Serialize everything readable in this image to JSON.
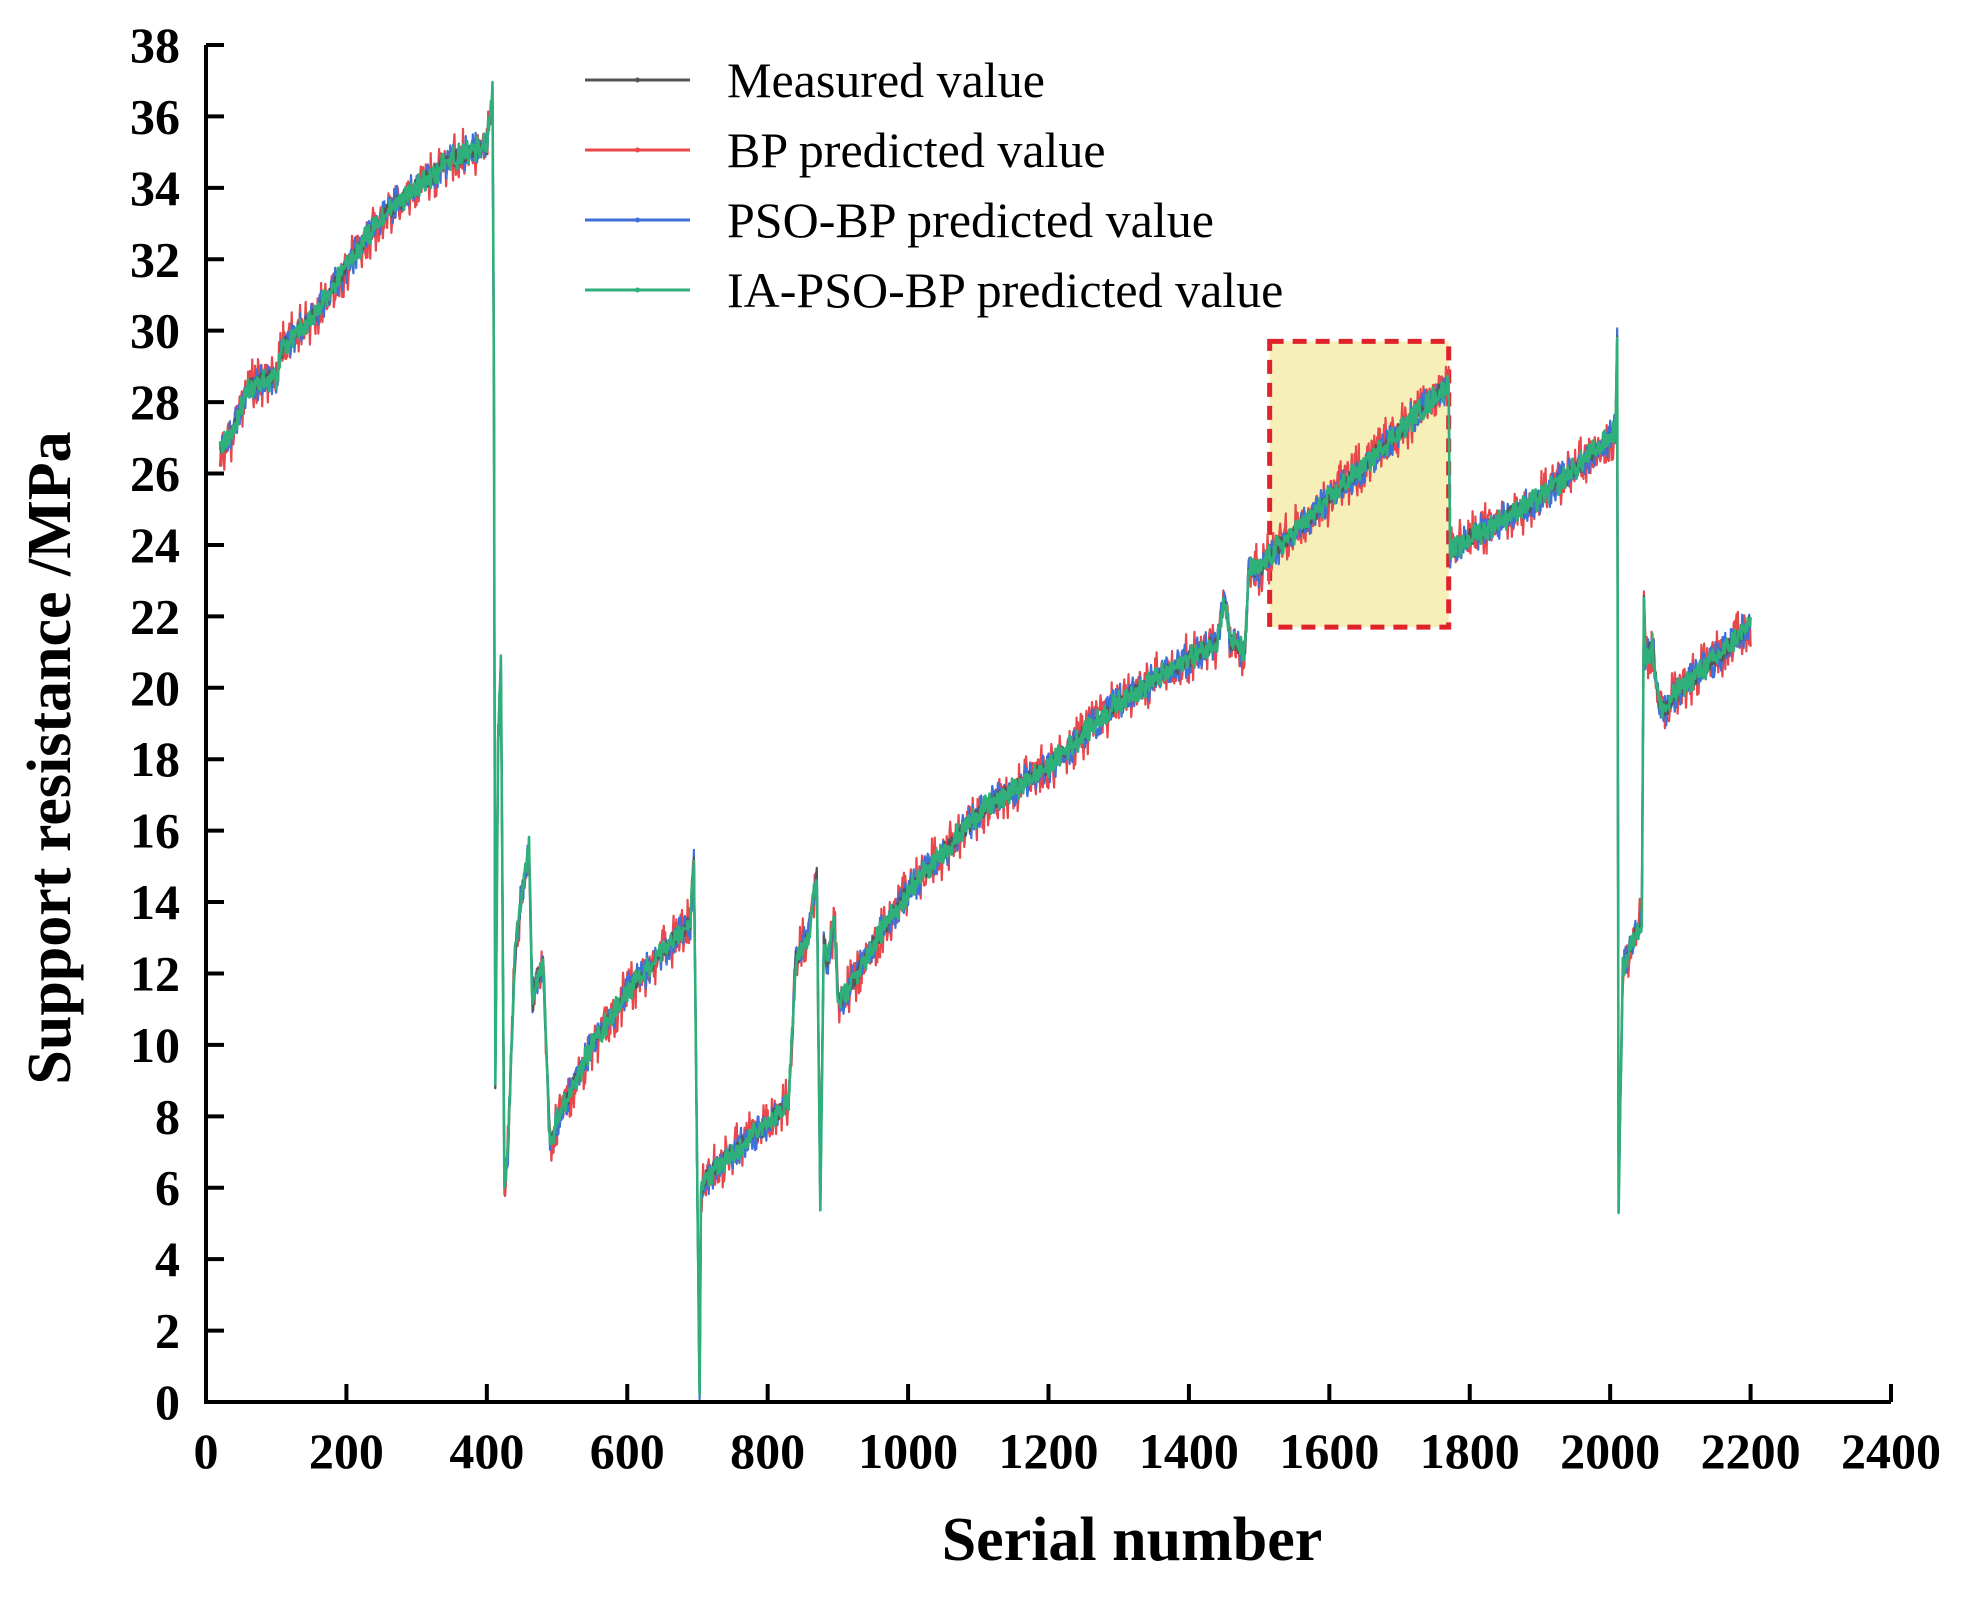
{
  "chart_data": {
    "type": "line",
    "title": "",
    "xlabel": "Serial number",
    "ylabel": "Support resistance /MPa",
    "xlim": [
      0,
      2400
    ],
    "ylim": [
      0,
      38
    ],
    "xticks": [
      "0",
      "200",
      "400",
      "600",
      "800",
      "1000",
      "1200",
      "1400",
      "1600",
      "1800",
      "2000",
      "2200",
      "2400"
    ],
    "yticks": [
      "0",
      "2",
      "4",
      "6",
      "8",
      "10",
      "12",
      "14",
      "16",
      "18",
      "20",
      "22",
      "24",
      "26",
      "28",
      "30",
      "32",
      "34",
      "36",
      "38"
    ],
    "grid": false,
    "legend_position": "top-center",
    "series": [
      {
        "name": "Measured value",
        "color": "#555555",
        "noise": 0.25,
        "bias": 0.0
      },
      {
        "name": "BP predicted value",
        "color": "#e8474b",
        "noise": 0.75,
        "bias": 0.0
      },
      {
        "name": "PSO-BP predicted value",
        "color": "#3f6fd8",
        "noise": 0.5,
        "bias": 0.0
      },
      {
        "name": "IA-PSO-BP predicted value",
        "color": "#2fb07a",
        "noise": 0.35,
        "bias": 0.0
      }
    ],
    "trend_x": [
      20,
      35,
      60,
      80,
      100,
      110,
      150,
      200,
      250,
      300,
      350,
      400,
      408,
      410,
      412,
      416,
      420,
      425,
      430,
      440,
      450,
      460,
      465,
      470,
      480,
      490,
      495,
      500,
      550,
      600,
      650,
      690,
      695,
      700,
      703,
      705,
      710,
      750,
      800,
      830,
      840,
      860,
      870,
      875,
      880,
      885,
      895,
      900,
      910,
      950,
      1000,
      1100,
      1200,
      1300,
      1400,
      1440,
      1450,
      1460,
      1480,
      1485,
      1500,
      1520,
      1600,
      1700,
      1770,
      1772,
      1780,
      1800,
      1900,
      2000,
      2008,
      2010,
      2012,
      2018,
      2030,
      2045,
      2048,
      2050,
      2060,
      2070,
      2080,
      2085,
      2100,
      2150,
      2200
    ],
    "trend_y": [
      26.7,
      27.0,
      28.4,
      28.6,
      28.7,
      29.6,
      30.3,
      31.8,
      33.2,
      34.0,
      34.8,
      35.2,
      36.7,
      29.0,
      8.8,
      18.5,
      20.8,
      6.0,
      7.0,
      12.5,
      14.3,
      15.5,
      11.0,
      11.8,
      12.3,
      7.2,
      7.4,
      7.9,
      10.0,
      11.5,
      12.6,
      13.4,
      15.2,
      5.5,
      0.3,
      5.8,
      6.2,
      7.0,
      7.8,
      8.4,
      12.4,
      13.2,
      14.8,
      5.5,
      13.0,
      12.3,
      13.5,
      11.2,
      11.4,
      12.8,
      14.3,
      16.5,
      17.8,
      19.6,
      20.8,
      21.3,
      22.5,
      21.3,
      21.0,
      23.3,
      23.3,
      23.8,
      25.3,
      27.2,
      28.5,
      23.8,
      23.9,
      24.2,
      25.3,
      27.0,
      27.3,
      30.0,
      5.6,
      12.1,
      12.8,
      13.5,
      22.7,
      20.8,
      21.2,
      19.5,
      19.4,
      19.6,
      20.0,
      20.8,
      21.8
    ],
    "highlight_region": {
      "x": [
        1515,
        1770
      ],
      "y": [
        21.7,
        29.7
      ],
      "fill": "#f6f0b8",
      "border": "#e0222a"
    }
  }
}
